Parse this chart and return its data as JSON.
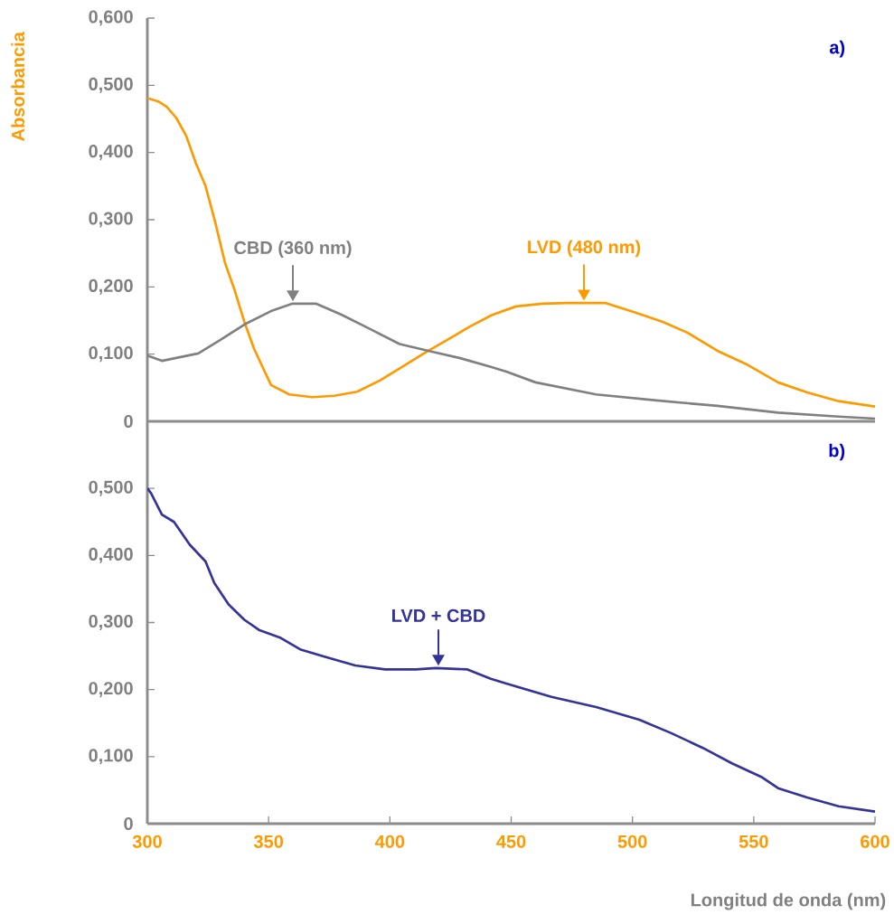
{
  "chart_data": [
    {
      "type": "line",
      "ylabel": "Absorbancia",
      "annotations": [
        {
          "text": "CBD (360 nm)",
          "x": 360,
          "y": 0.175
        },
        {
          "text": "LVD (480 nm)",
          "x": 480,
          "y": 0.176
        },
        "a)"
      ],
      "xlim": [
        300,
        600
      ],
      "ylim": [
        0,
        0.6
      ],
      "tick_labels": "y",
      "yticks": [
        0,
        {
          "value": 0.1,
          "label": "0,100"
        },
        {
          "value": 0.2,
          "label": "0,200"
        },
        {
          "value": 0.3,
          "label": "0,300"
        },
        {
          "value": 0.4,
          "label": "0,400"
        },
        {
          "value": 0.5,
          "label": "0,500"
        },
        {
          "value": 0.6,
          "label": "0,600"
        }
      ],
      "grid": false,
      "marker": "none",
      "line_style": "solid",
      "series": [
        {
          "color": "#ff9900",
          "x": [
            300,
            304.5,
            308,
            312,
            316,
            320,
            324,
            328,
            332,
            336,
            340,
            344,
            348,
            351,
            358.5,
            368,
            377,
            386.5,
            396,
            405,
            414,
            423.5,
            433,
            442,
            452,
            463,
            473,
            489,
            501,
            512.5,
            522.6,
            535,
            547.5,
            560,
            572,
            585,
            600
          ],
          "values": [
            0.481,
            0.476,
            0.468,
            0.451,
            0.425,
            0.384,
            0.35,
            0.296,
            0.236,
            0.195,
            0.148,
            0.108,
            0.077,
            0.054,
            0.04,
            0.036,
            0.038,
            0.044,
            0.061,
            0.081,
            0.101,
            0.121,
            0.141,
            0.158,
            0.171,
            0.175,
            0.176,
            0.176,
            0.162,
            0.148,
            0.132,
            0.105,
            0.084,
            0.058,
            0.043,
            0.03,
            0.022
          ]
        },
        {
          "color": "#808080",
          "x": [
            300,
            306,
            321,
            330,
            341,
            351,
            359.6,
            369.7,
            379.8,
            392,
            404,
            417,
            429,
            441.6,
            448,
            460,
            485,
            510,
            535,
            560,
            585,
            600
          ],
          "values": [
            0.098,
            0.09,
            0.101,
            0.121,
            0.146,
            0.164,
            0.175,
            0.175,
            0.159,
            0.137,
            0.115,
            0.104,
            0.094,
            0.081,
            0.074,
            0.058,
            0.04,
            0.031,
            0.023,
            0.013,
            0.007,
            0.004
          ]
        }
      ]
    },
    {
      "type": "line",
      "xlabel": "Longitud de onda (nm)",
      "annotations": [
        {
          "text": "LVD + CBD",
          "x": 420,
          "y": 0.232
        },
        "b)"
      ],
      "xlim": [
        300,
        600
      ],
      "ylim": [
        0,
        0.6
      ],
      "xticks": [
        300,
        350,
        400,
        450,
        500,
        550,
        600
      ],
      "yticks": [
        0,
        {
          "value": 0.1,
          "label": "0,100"
        },
        {
          "value": 0.2,
          "label": "0,200"
        },
        {
          "value": 0.3,
          "label": "0,300"
        },
        {
          "value": 0.4,
          "label": "0,400"
        },
        {
          "value": 0.5,
          "label": "0,500"
        }
      ],
      "grid": false,
      "marker": "none",
      "line_style": "solid",
      "series": [
        {
          "color": "#333399",
          "x": [
            300,
            301.5,
            306,
            311,
            317.5,
            324,
            327.6,
            333.5,
            340,
            346,
            355,
            363,
            373,
            385.7,
            398,
            410.7,
            419,
            432,
            441.6,
            448,
            466.6,
            485,
            502.8,
            516,
            529,
            541,
            553.5,
            560,
            572,
            585,
            600
          ],
          "values": [
            0.5,
            0.493,
            0.461,
            0.45,
            0.416,
            0.391,
            0.359,
            0.327,
            0.304,
            0.289,
            0.277,
            0.26,
            0.249,
            0.236,
            0.23,
            0.23,
            0.232,
            0.23,
            0.216,
            0.209,
            0.189,
            0.174,
            0.155,
            0.135,
            0.113,
            0.09,
            0.069,
            0.053,
            0.039,
            0.026,
            0.018
          ]
        }
      ]
    }
  ]
}
